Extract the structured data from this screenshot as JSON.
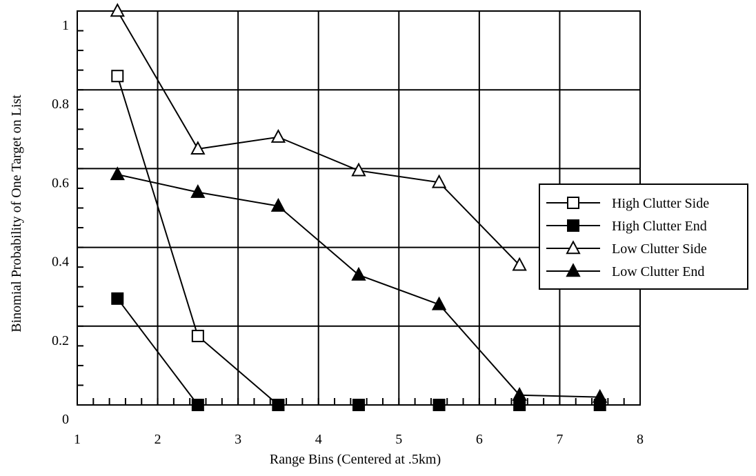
{
  "chart_data": {
    "type": "line",
    "xlabel": "Range Bins (Centered at .5km)",
    "ylabel": "Binomial Probability of One Target on List",
    "xlim": [
      1,
      8
    ],
    "ylim": [
      0,
      1
    ],
    "x_ticks": [
      "1",
      "2",
      "3",
      "4",
      "5",
      "6",
      "7",
      "8"
    ],
    "y_ticks": [
      "0",
      "0.2",
      "0.4",
      "0.6",
      "0.8",
      "1"
    ],
    "grid": true,
    "legend_position": "right",
    "series": [
      {
        "name": "High Clutter Side",
        "marker": "open-square",
        "x": [
          1.5,
          2.5,
          3.5
        ],
        "y": [
          0.835,
          0.175,
          0.0
        ]
      },
      {
        "name": "High Clutter End",
        "marker": "filled-square",
        "x": [
          1.5,
          2.5,
          3.5,
          4.5,
          5.5,
          6.5,
          7.5
        ],
        "y": [
          0.27,
          0.0,
          0.0,
          0.0,
          0.0,
          0.0,
          0.0
        ]
      },
      {
        "name": "Low Clutter Side",
        "marker": "open-triangle",
        "x": [
          1.5,
          2.5,
          3.5,
          4.5,
          5.5,
          6.5
        ],
        "y": [
          1.0,
          0.65,
          0.68,
          0.595,
          0.565,
          0.355
        ]
      },
      {
        "name": "Low Clutter End",
        "marker": "filled-triangle",
        "x": [
          1.5,
          2.5,
          3.5,
          4.5,
          5.5,
          6.5,
          7.5
        ],
        "y": [
          0.585,
          0.54,
          0.505,
          0.33,
          0.255,
          0.025,
          0.02
        ]
      }
    ]
  }
}
